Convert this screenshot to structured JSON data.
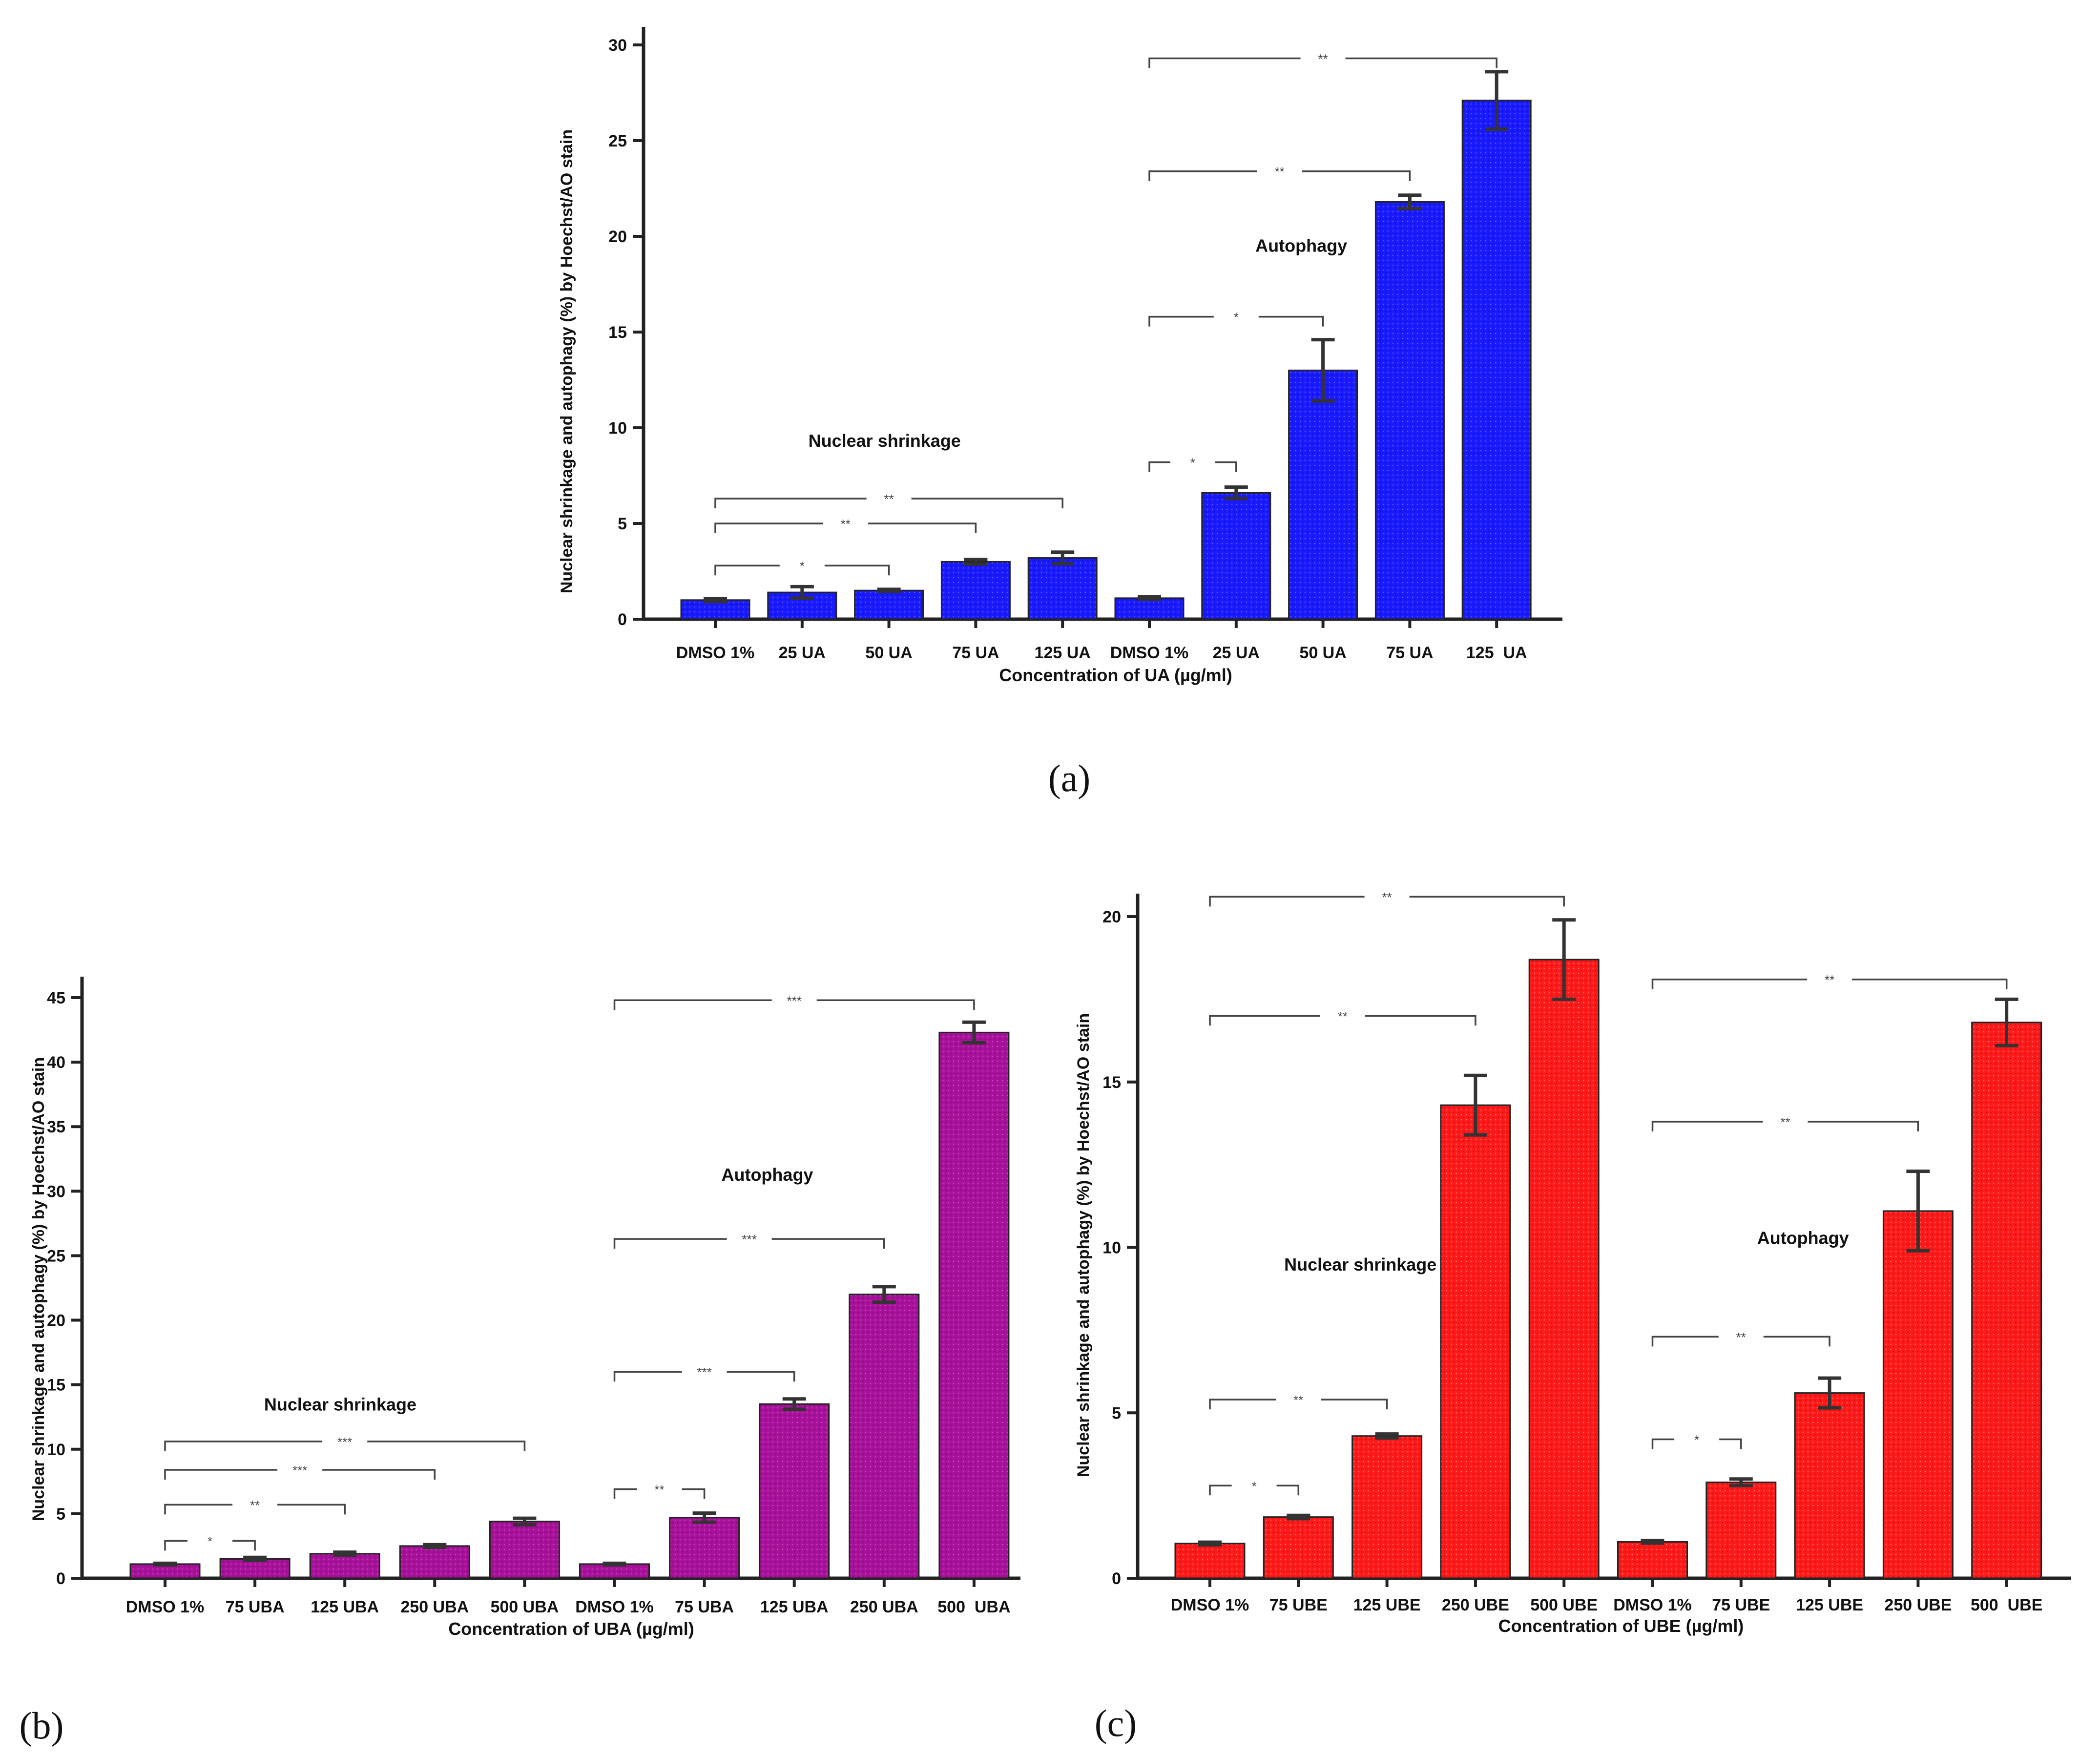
{
  "chart_data": [
    {
      "panel": "(a)",
      "type": "bar",
      "color": "#1a1aff",
      "ylabel": "Nuclear shrinkage and autophagy (%) by Hoechst/AO stain",
      "xlabel": "Concentration of UA (µg/ml)",
      "ylim": [
        0,
        30
      ],
      "yticks": [
        0,
        5,
        10,
        15,
        20,
        25,
        30
      ],
      "categories": [
        "DMSO 1%",
        "25 UA",
        "50 UA",
        "75 UA",
        "125 UA",
        "DMSO 1%",
        "25 UA",
        "50 UA",
        "75 UA",
        "125  UA"
      ],
      "values": [
        1.0,
        1.4,
        1.5,
        3.0,
        3.2,
        1.1,
        6.6,
        13.0,
        21.8,
        27.1
      ],
      "errors": [
        0.08,
        0.3,
        0.06,
        0.12,
        0.3,
        0.06,
        0.3,
        1.6,
        0.35,
        1.5
      ],
      "groups": [
        {
          "label": "Nuclear shrinkage",
          "anchor_x": 1.95,
          "anchor_y": 9.0
        },
        {
          "label": "Autophagy",
          "anchor_x": 6.75,
          "anchor_y": 19.2
        }
      ],
      "significance": [
        {
          "from": 0,
          "to": 2,
          "y": 2.8,
          "label": "*"
        },
        {
          "from": 0,
          "to": 3,
          "y": 5.0,
          "label": "**"
        },
        {
          "from": 0,
          "to": 4,
          "y": 6.3,
          "label": "**"
        },
        {
          "from": 5,
          "to": 6,
          "y": 8.2,
          "label": "*"
        },
        {
          "from": 5,
          "to": 7,
          "y": 15.8,
          "label": "*"
        },
        {
          "from": 5,
          "to": 8,
          "y": 23.4,
          "label": "**"
        },
        {
          "from": 5,
          "to": 9,
          "y": 29.3,
          "label": "**"
        }
      ]
    },
    {
      "panel": "(b)",
      "type": "bar",
      "color": "#a8129a",
      "ylabel": "Nuclear shrinkage and autophagy (%) by Hoechst/AO stain",
      "xlabel": "Concentration of UBA (µg/ml)",
      "ylim": [
        0,
        45
      ],
      "yticks": [
        0,
        5,
        10,
        15,
        20,
        25,
        30,
        35,
        40,
        45
      ],
      "categories": [
        "DMSO 1%",
        "75 UBA",
        "125 UBA",
        "250 UBA",
        "500 UBA",
        "DMSO 1%",
        "75 UBA",
        "125 UBA",
        "250 UBA",
        "500  UBA"
      ],
      "values": [
        1.1,
        1.5,
        1.9,
        2.5,
        4.4,
        1.1,
        4.7,
        13.5,
        22.0,
        42.3
      ],
      "errors": [
        0.06,
        0.12,
        0.12,
        0.1,
        0.25,
        0.06,
        0.35,
        0.4,
        0.6,
        0.8
      ],
      "groups": [
        {
          "label": "Nuclear shrinkage",
          "anchor_x": 1.95,
          "anchor_y": 13.0
        },
        {
          "label": "Autophagy",
          "anchor_x": 6.7,
          "anchor_y": 30.8
        }
      ],
      "significance": [
        {
          "from": 0,
          "to": 1,
          "y": 2.9,
          "label": "*"
        },
        {
          "from": 0,
          "to": 2,
          "y": 5.7,
          "label": "**"
        },
        {
          "from": 0,
          "to": 3,
          "y": 8.4,
          "label": "***"
        },
        {
          "from": 0,
          "to": 4,
          "y": 10.6,
          "label": "***"
        },
        {
          "from": 5,
          "to": 6,
          "y": 6.9,
          "label": "**"
        },
        {
          "from": 5,
          "to": 7,
          "y": 16.0,
          "label": "***"
        },
        {
          "from": 5,
          "to": 8,
          "y": 26.3,
          "label": "***"
        },
        {
          "from": 5,
          "to": 9,
          "y": 44.8,
          "label": "***"
        }
      ]
    },
    {
      "panel": "(c)",
      "type": "bar",
      "color": "#ff1a1a",
      "ylabel": "Nuclear shrinkage and autophagy (%) by Hoechst/AO stain",
      "xlabel": "Concentration of UBE (µg/ml)",
      "ylim": [
        0,
        20
      ],
      "yticks": [
        0,
        5,
        10,
        15,
        20
      ],
      "categories": [
        "DMSO 1%",
        "75 UBE",
        "125 UBE",
        "250 UBE",
        "500 UBE",
        "DMSO 1%",
        "75 UBE",
        "125 UBE",
        "250 UBE",
        "500  UBE"
      ],
      "values": [
        1.05,
        1.85,
        4.3,
        14.3,
        18.7,
        1.1,
        2.9,
        5.6,
        11.1,
        16.8
      ],
      "errors": [
        0.04,
        0.05,
        0.06,
        0.9,
        1.2,
        0.04,
        0.1,
        0.45,
        1.2,
        0.7
      ],
      "groups": [
        {
          "label": "Nuclear shrinkage",
          "anchor_x": 1.7,
          "anchor_y": 9.3
        },
        {
          "label": "Autophagy",
          "anchor_x": 6.7,
          "anchor_y": 10.1
        }
      ],
      "significance": [
        {
          "from": 0,
          "to": 1,
          "y": 2.8,
          "label": "*"
        },
        {
          "from": 0,
          "to": 2,
          "y": 5.4,
          "label": "**"
        },
        {
          "from": 0,
          "to": 3,
          "y": 17.0,
          "label": "**"
        },
        {
          "from": 0,
          "to": 4,
          "y": 20.6,
          "label": "**"
        },
        {
          "from": 5,
          "to": 6,
          "y": 4.2,
          "label": "*"
        },
        {
          "from": 5,
          "to": 7,
          "y": 7.3,
          "label": "**"
        },
        {
          "from": 5,
          "to": 8,
          "y": 13.8,
          "label": "**"
        },
        {
          "from": 5,
          "to": 9,
          "y": 18.1,
          "label": "**"
        }
      ]
    }
  ]
}
